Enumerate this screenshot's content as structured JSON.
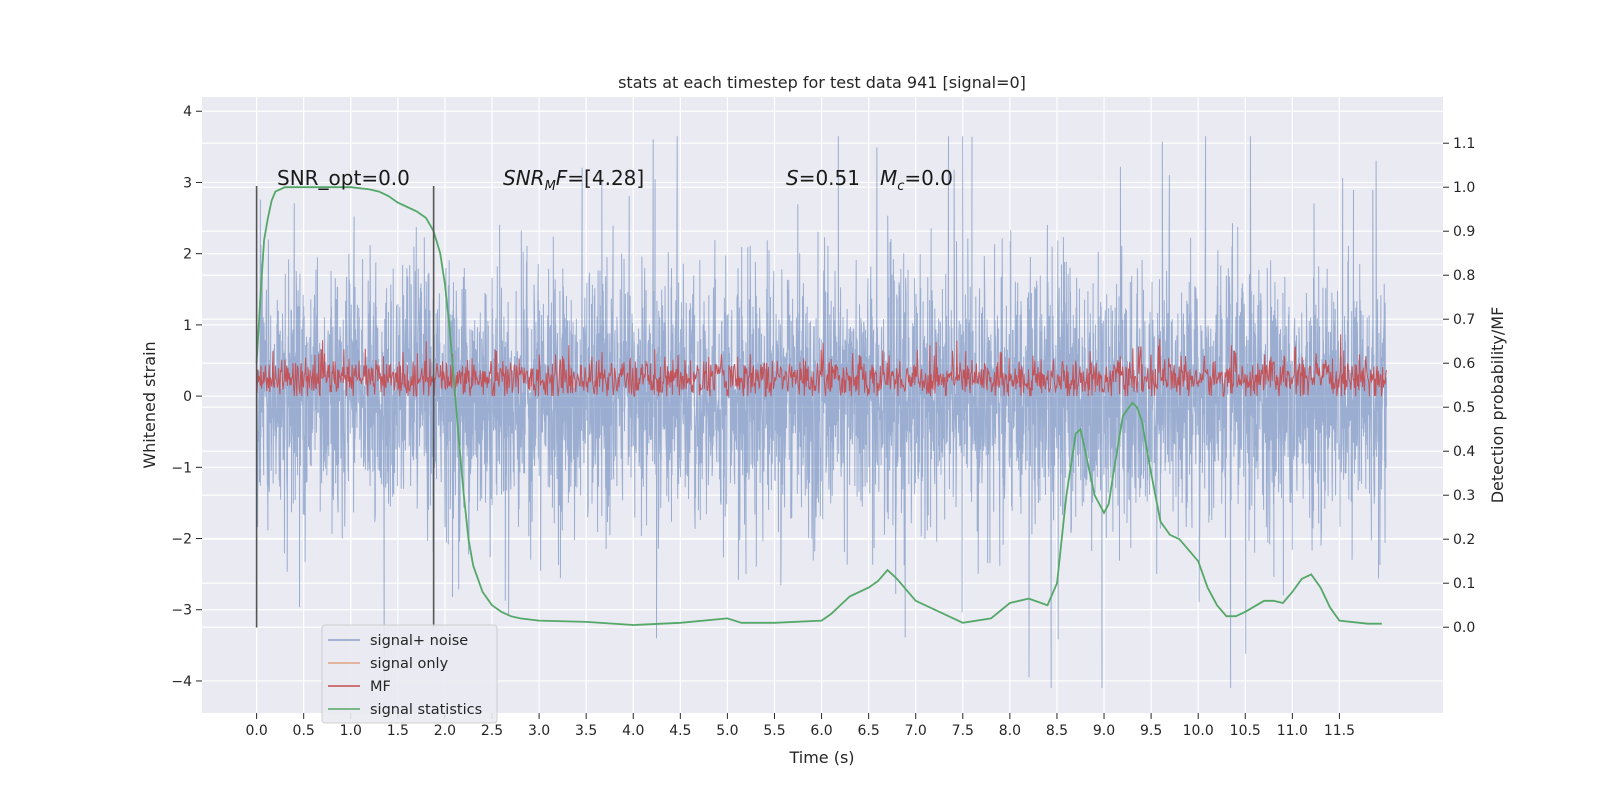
{
  "chart_data": {
    "type": "line",
    "title": "stats at each timestep for test data 941 [signal=0]",
    "xlabel": "Time (s)",
    "ylabel_left": "Whitened strain",
    "ylabel_right": "Detection probability/MF",
    "xlim": [
      -0.58,
      12.6
    ],
    "ylim_left": [
      -4.45,
      4.2
    ],
    "ylim_right": [
      -0.195,
      1.205
    ],
    "xticks": [
      0.0,
      0.5,
      1.0,
      1.5,
      2.0,
      2.5,
      3.0,
      3.5,
      4.0,
      4.5,
      5.0,
      5.5,
      6.0,
      6.5,
      7.0,
      7.5,
      8.0,
      8.5,
      9.0,
      9.5,
      10.0,
      10.5,
      11.0,
      11.5
    ],
    "xtick_labels": [
      "0.0",
      "0.5",
      "1.0",
      "1.5",
      "2.0",
      "2.5",
      "3.0",
      "3.5",
      "4.0",
      "4.5",
      "5.0",
      "5.5",
      "6.0",
      "6.5",
      "7.0",
      "7.5",
      "8.0",
      "8.5",
      "9.0",
      "9.5",
      "10.0",
      "10.5",
      "11.0",
      "11.5"
    ],
    "yticks_left": [
      -4,
      -3,
      -2,
      -1,
      0,
      1,
      2,
      3,
      4
    ],
    "ytick_labels_left": [
      "−4",
      "−3",
      "−2",
      "−1",
      "0",
      "1",
      "2",
      "3",
      "4"
    ],
    "yticks_right": [
      0.0,
      0.1,
      0.2,
      0.3,
      0.4,
      0.5,
      0.6,
      0.7,
      0.8,
      0.9,
      1.0,
      1.1
    ],
    "ytick_labels_right": [
      "0.0",
      "0.1",
      "0.2",
      "0.3",
      "0.4",
      "0.5",
      "0.6",
      "0.7",
      "0.8",
      "0.9",
      "1.0",
      "1.1"
    ],
    "grid": true,
    "legend_position": "lower-left",
    "vlines": [
      {
        "x": 0.0,
        "ymin": -3.25,
        "ymax": 2.95
      },
      {
        "x": 1.88,
        "ymin": -3.25,
        "ymax": 2.95
      }
    ],
    "annotations": [
      {
        "id": "snr_opt",
        "x": 0.2,
        "y": 3.0,
        "text": "SNR_opt=0.0"
      },
      {
        "id": "snr_mf",
        "x": 2.6,
        "y": 3.0,
        "text": "=[4.28]"
      },
      {
        "id": "stats",
        "x": 5.6,
        "y": 3.0,
        "text": "=0.51"
      },
      {
        "id": "mc",
        "x": 8.2,
        "y": 3.0,
        "text": "=0.0"
      }
    ],
    "annotation_symbols": {
      "snr_mf": "SNR",
      "snr_mf_sub": "M",
      "snr_mf_tail": "F",
      "s": "S",
      "mc": "M",
      "mc_sub": "c"
    },
    "series": [
      {
        "name": "signal+ noise",
        "axis": "left",
        "color": "#4c72b0",
        "description_envelope": {
          "x_range": [
            0.0,
            12.0
          ],
          "approx_std": 0.85,
          "max": 3.65,
          "min": -4.1
        }
      },
      {
        "name": "signal only",
        "axis": "left",
        "color": "#dd8452",
        "values": []
      },
      {
        "name": "MF",
        "axis": "left",
        "color": "#c44e52",
        "description_envelope": {
          "x_range": [
            0.0,
            12.0
          ],
          "center": 0.25,
          "approx_range": [
            0.0,
            1.0
          ]
        }
      },
      {
        "name": "signal statistics",
        "axis": "right",
        "color": "#55a868",
        "x": [
          0.0,
          0.04,
          0.08,
          0.12,
          0.16,
          0.2,
          0.3,
          0.5,
          0.8,
          1.0,
          1.2,
          1.3,
          1.4,
          1.5,
          1.6,
          1.7,
          1.8,
          1.88,
          1.95,
          2.0,
          2.05,
          2.1,
          2.15,
          2.2,
          2.25,
          2.3,
          2.4,
          2.5,
          2.6,
          2.7,
          2.8,
          3.0,
          3.5,
          4.0,
          4.5,
          5.0,
          5.15,
          5.5,
          6.0,
          6.1,
          6.3,
          6.5,
          6.6,
          6.7,
          6.8,
          7.0,
          7.5,
          7.8,
          8.0,
          8.2,
          8.4,
          8.5,
          8.6,
          8.7,
          8.75,
          8.8,
          8.9,
          9.0,
          9.05,
          9.1,
          9.2,
          9.3,
          9.35,
          9.4,
          9.5,
          9.6,
          9.7,
          9.8,
          10.0,
          10.1,
          10.2,
          10.3,
          10.4,
          10.5,
          10.7,
          10.8,
          10.9,
          11.0,
          11.1,
          11.2,
          11.3,
          11.4,
          11.5,
          11.8,
          11.95
        ],
        "values": [
          0.6,
          0.75,
          0.88,
          0.93,
          0.97,
          0.99,
          1.0,
          1.0,
          1.0,
          1.0,
          0.995,
          0.99,
          0.98,
          0.965,
          0.955,
          0.945,
          0.93,
          0.9,
          0.85,
          0.78,
          0.68,
          0.55,
          0.42,
          0.3,
          0.2,
          0.14,
          0.08,
          0.05,
          0.035,
          0.025,
          0.02,
          0.015,
          0.012,
          0.005,
          0.01,
          0.02,
          0.01,
          0.01,
          0.015,
          0.03,
          0.07,
          0.09,
          0.105,
          0.13,
          0.11,
          0.06,
          0.01,
          0.02,
          0.055,
          0.065,
          0.05,
          0.1,
          0.3,
          0.44,
          0.45,
          0.4,
          0.3,
          0.26,
          0.28,
          0.35,
          0.48,
          0.51,
          0.5,
          0.47,
          0.35,
          0.24,
          0.21,
          0.2,
          0.15,
          0.09,
          0.05,
          0.025,
          0.025,
          0.035,
          0.06,
          0.06,
          0.055,
          0.08,
          0.11,
          0.12,
          0.09,
          0.045,
          0.015,
          0.008,
          0.008
        ]
      }
    ]
  },
  "colors": {
    "axes_background": "#eaeaf2",
    "grid": "#ffffff",
    "noise": "#4c72b0",
    "signal_only": "#dd8452",
    "mf": "#c44e52",
    "stats": "#55a868",
    "vline": "#555555"
  }
}
